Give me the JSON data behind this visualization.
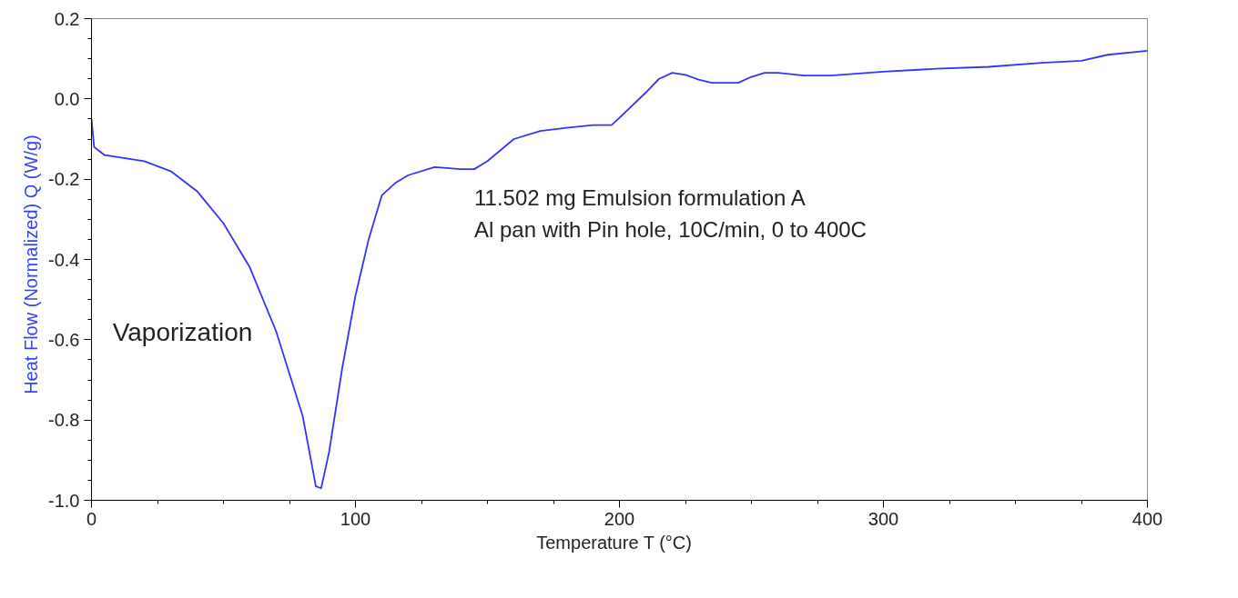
{
  "chart_data": {
    "type": "line",
    "xlabel": "Temperature  T  (°C)",
    "ylabel": "Heat Flow (Normalized)  Q  (W/g)",
    "annotations": [
      "Vaporization",
      "11.502 mg Emulsion formulation A\nAl pan with Pin hole, 10C/min, 0 to 400C"
    ],
    "x": [
      0,
      1,
      5,
      20,
      30,
      40,
      50,
      60,
      70,
      80,
      85,
      87,
      90,
      95,
      100,
      105,
      110,
      115,
      120,
      130,
      140,
      145,
      150,
      160,
      170,
      180,
      190,
      197,
      200,
      210,
      215,
      220,
      225,
      230,
      235,
      245,
      250,
      255,
      260,
      270,
      280,
      300,
      320,
      340,
      360,
      375,
      385,
      400
    ],
    "series": [
      {
        "color": "#3333ff",
        "values": [
          -0.05,
          -0.12,
          -0.14,
          -0.155,
          -0.18,
          -0.23,
          -0.31,
          -0.42,
          -0.58,
          -0.79,
          -0.965,
          -0.97,
          -0.88,
          -0.67,
          -0.49,
          -0.35,
          -0.24,
          -0.21,
          -0.19,
          -0.17,
          -0.175,
          -0.175,
          -0.155,
          -0.1,
          -0.08,
          -0.072,
          -0.065,
          -0.065,
          -0.047,
          0.016,
          0.05,
          0.065,
          0.06,
          0.048,
          0.04,
          0.04,
          0.055,
          0.065,
          0.065,
          0.058,
          0.058,
          0.068,
          0.075,
          0.08,
          0.09,
          0.095,
          0.11,
          0.12
        ]
      }
    ],
    "xlim": [
      0,
      400
    ],
    "ylim": [
      -1.0,
      0.2
    ],
    "xticks": [
      0,
      100,
      200,
      300,
      400
    ],
    "yticks": [
      {
        "value": 0.2,
        "label": "0.2"
      },
      {
        "value": 0.0,
        "label": "0.0"
      },
      {
        "value": -0.2,
        "label": "-0.2"
      },
      {
        "value": -0.4,
        "label": "-0.4"
      },
      {
        "value": -0.6,
        "label": "-0.6"
      },
      {
        "value": -0.8,
        "label": "-0.8"
      },
      {
        "value": -1.0,
        "label": "-1.0"
      }
    ],
    "grid": false,
    "marker": "none",
    "line_style": "solid"
  }
}
